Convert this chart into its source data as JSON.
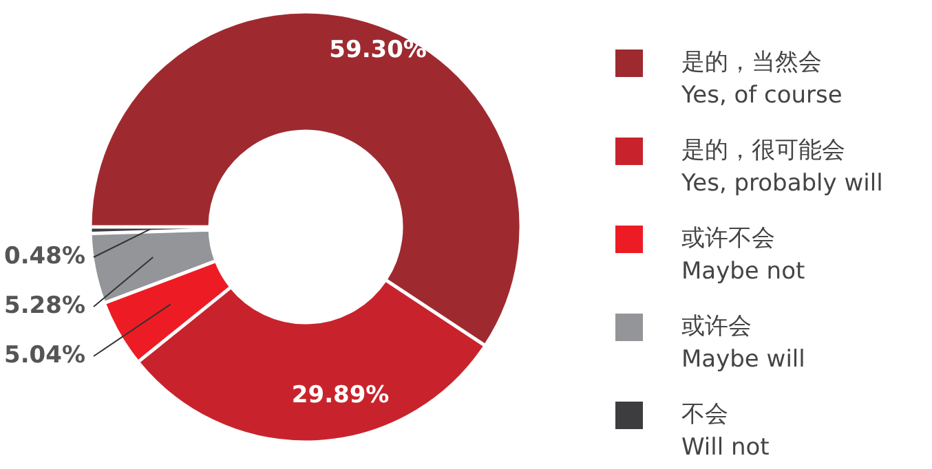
{
  "chart_data": {
    "type": "donut",
    "categories": [
      "是的，当然会\nYes, of course",
      "是的，很可能会\nYes, probably will",
      "或许不会\nMaybe not",
      "或许会\nMaybe will",
      "不会\nWill not"
    ],
    "values": [
      59.3,
      29.89,
      5.04,
      5.28,
      0.48
    ],
    "colors": [
      "#9e2a30",
      "#c8232c",
      "#ed1c24",
      "#939598",
      "#3d3d3f"
    ],
    "value_labels": [
      "59.30%",
      "29.89%",
      "5.04%",
      "5.28%",
      "0.48%"
    ],
    "legend": "right"
  }
}
